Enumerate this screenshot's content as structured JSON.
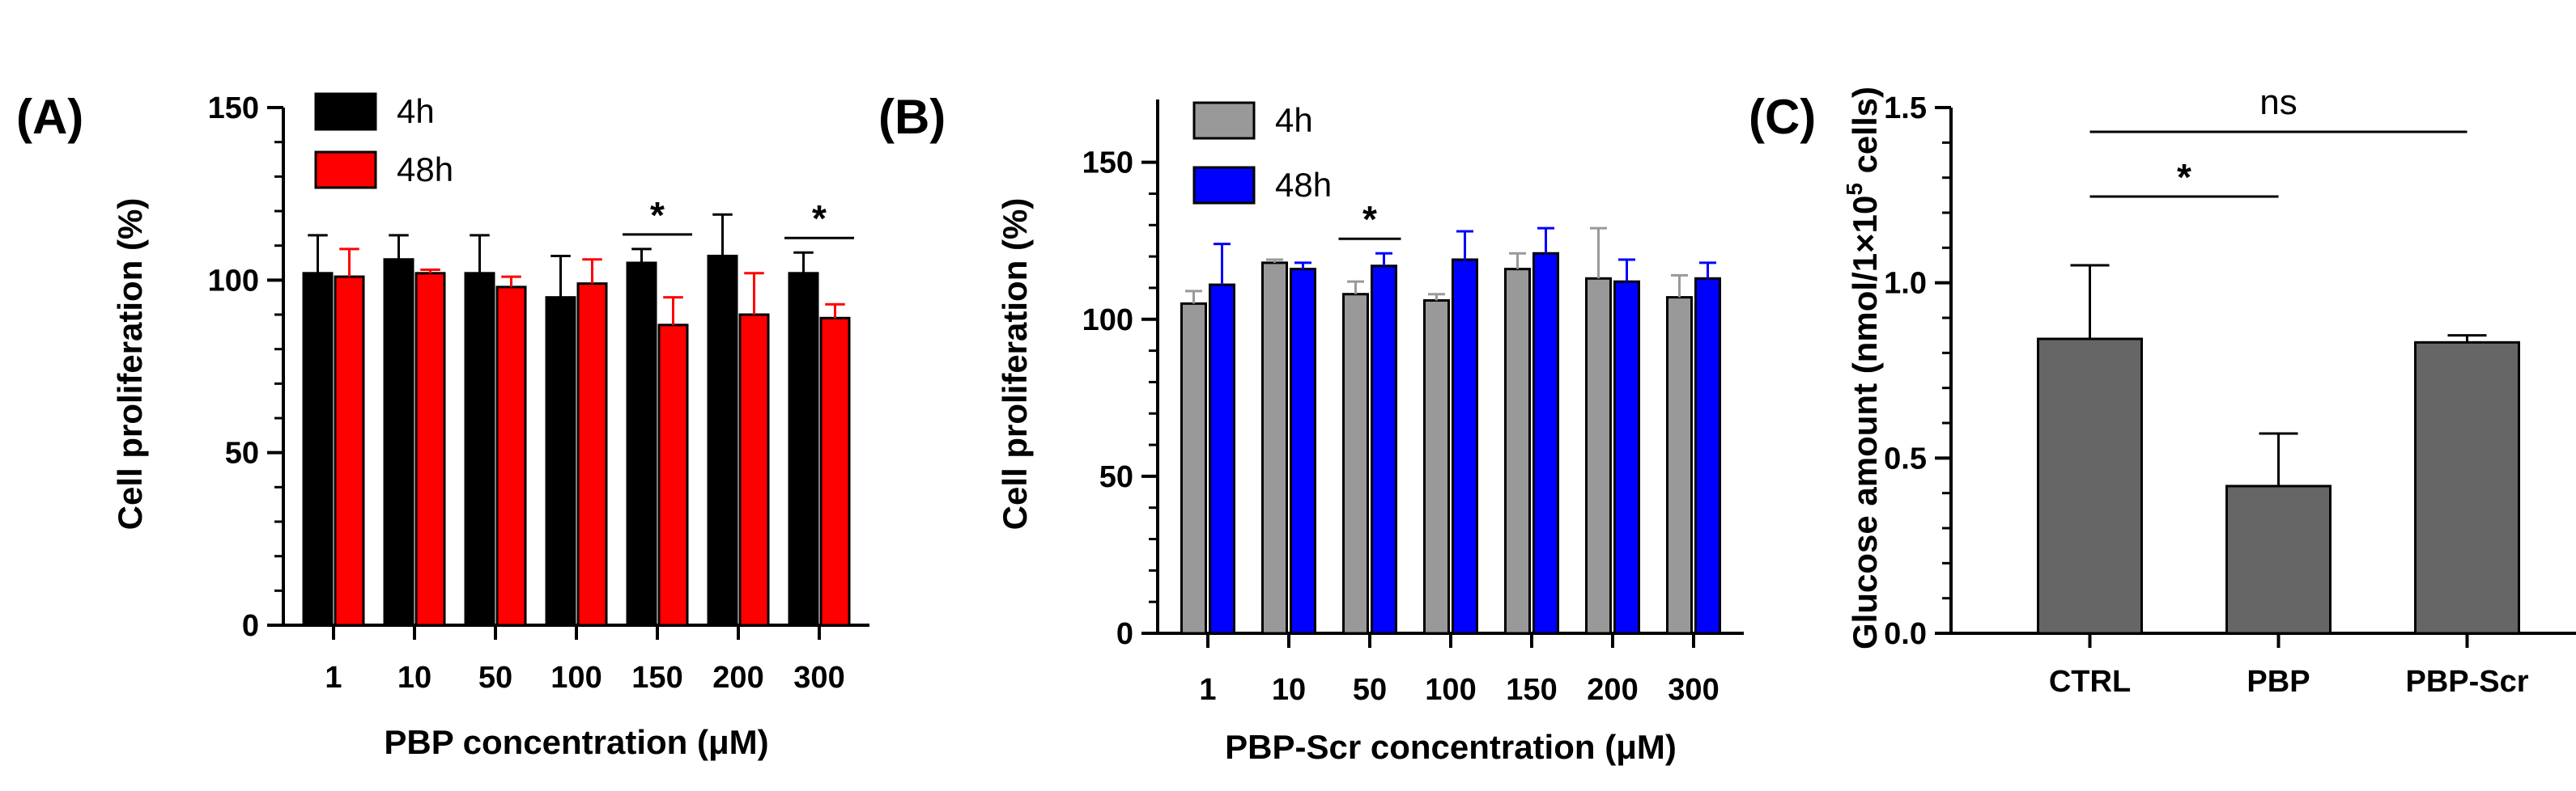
{
  "chart_data": [
    {
      "panel": "(A)",
      "type": "bar",
      "xlabel": "PBP concentration  (μM)",
      "ylabel": "Cell proliferation  (%)",
      "ylim": [
        0,
        150
      ],
      "yticks": [
        0,
        50,
        100,
        150
      ],
      "categories": [
        "1",
        "10",
        "50",
        "100",
        "150",
        "200",
        "300"
      ],
      "legend_position": "top-left",
      "series": [
        {
          "name": "4h",
          "color": "#000000",
          "values": [
            102,
            106,
            102,
            95,
            105,
            107,
            102
          ],
          "errors": [
            11,
            7,
            11,
            12,
            4,
            12,
            6
          ]
        },
        {
          "name": "48h",
          "color": "#ff0000",
          "values": [
            101,
            102,
            98,
            99,
            87,
            90,
            89
          ],
          "errors": [
            8,
            1,
            3,
            7,
            8,
            12,
            4
          ]
        }
      ],
      "annotations": [
        {
          "category": "150",
          "text": "*"
        },
        {
          "category": "300",
          "text": "*"
        }
      ]
    },
    {
      "panel": "(B)",
      "type": "bar",
      "xlabel": "PBP-Scr concentration (μM)",
      "ylabel": "Cell proliferation  (%)",
      "ylim": [
        0,
        170
      ],
      "yticks": [
        0,
        50,
        100,
        150
      ],
      "categories": [
        "1",
        "10",
        "50",
        "100",
        "150",
        "200",
        "300"
      ],
      "legend_position": "top-left",
      "series": [
        {
          "name": "4h",
          "color": "#999999",
          "values": [
            105,
            118,
            108,
            106,
            116,
            113,
            107
          ],
          "errors": [
            4,
            1,
            4,
            2,
            5,
            16,
            7
          ]
        },
        {
          "name": "48h",
          "color": "#0000ff",
          "values": [
            111,
            116,
            117,
            119,
            121,
            112,
            113
          ],
          "errors": [
            13,
            2,
            4,
            9,
            8,
            7,
            5
          ]
        }
      ],
      "annotations": [
        {
          "category": "50",
          "text": "*"
        }
      ]
    },
    {
      "panel": "(C)",
      "type": "bar",
      "xlabel": "",
      "ylabel_parts": [
        "Glucose amount (nmol/1×10",
        "5",
        " cells)"
      ],
      "ylim": [
        0,
        1.5
      ],
      "yticks": [
        "0.0",
        "0.5",
        "1.0",
        "1.5"
      ],
      "categories": [
        "CTRL",
        "PBP",
        "PBP-Scr"
      ],
      "series": [
        {
          "name": "Glucose",
          "color": "#666666",
          "values": [
            0.84,
            0.42,
            0.83
          ],
          "errors": [
            0.21,
            0.15,
            0.02
          ]
        }
      ],
      "annotations": [
        {
          "from": "CTRL",
          "to": "PBP",
          "text": "*"
        },
        {
          "from": "CTRL",
          "to": "PBP-Scr",
          "text": "ns"
        }
      ]
    }
  ]
}
